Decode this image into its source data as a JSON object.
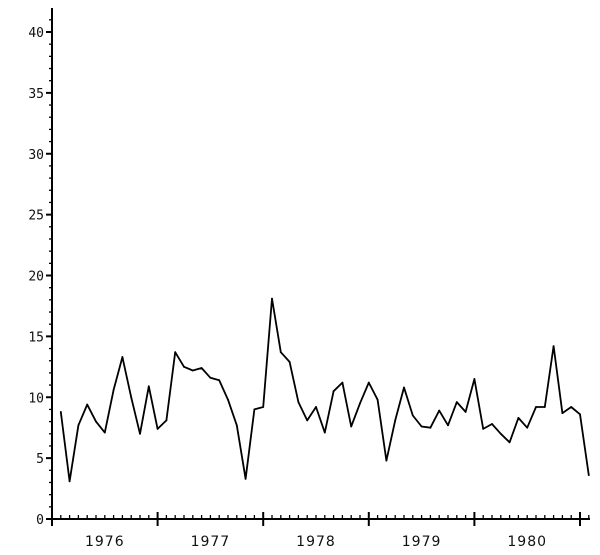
{
  "chart_data": {
    "type": "line",
    "title": "",
    "xlabel": "",
    "ylabel": "",
    "ylim": [
      0,
      40
    ],
    "yticks": [
      "0",
      "5",
      "10",
      "15",
      "20",
      "25",
      "30",
      "35",
      "40"
    ],
    "xtick_labels": [
      "1976",
      "1977",
      "1978",
      "1979",
      "1980"
    ],
    "grid": false,
    "line_color": "#000000",
    "x_start": "1976-01",
    "x_step": "month",
    "values": [
      8.8,
      3.1,
      7.7,
      9.4,
      8.0,
      7.1,
      10.6,
      13.3,
      10.0,
      7.0,
      10.9,
      7.4,
      8.1,
      13.7,
      12.5,
      12.2,
      12.4,
      11.6,
      11.4,
      9.8,
      7.7,
      3.3,
      9.0,
      9.2,
      18.1,
      13.7,
      12.9,
      9.6,
      8.1,
      9.2,
      7.1,
      10.5,
      11.2,
      7.6,
      9.5,
      11.2,
      9.8,
      4.8,
      8.1,
      10.8,
      8.5,
      7.6,
      7.5,
      8.9,
      7.7,
      9.6,
      8.8,
      11.5,
      7.4,
      7.8,
      7.0,
      6.3,
      8.3,
      7.5,
      9.2,
      9.2,
      14.2,
      8.7,
      9.2,
      8.6,
      3.6
    ]
  }
}
